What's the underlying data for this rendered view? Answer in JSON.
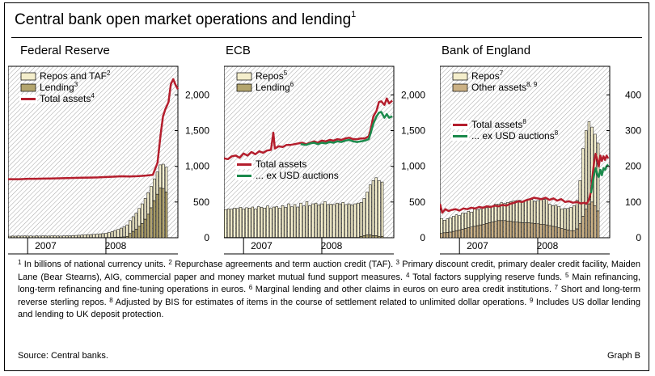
{
  "title": "Central bank open market operations and lending",
  "title_footnote": "1",
  "colors": {
    "repos": "#f4eecc",
    "lending": "#b3a56e",
    "other_assets": "#cbb185",
    "total_assets": "#b41e2d",
    "ex_usd": "#1b8a4c",
    "hatch": "#9a9a9a"
  },
  "chart_data": [
    {
      "type": "bar",
      "title": "Federal Reserve",
      "x_ticks": [
        "2007",
        "2008"
      ],
      "y_ticks": [
        "0",
        "500",
        "1,000",
        "1,500",
        "2,000"
      ],
      "ylim": [
        0,
        2400
      ],
      "legend": [
        {
          "label": "Repos and TAF",
          "note": "2",
          "kind": "bar",
          "color_key": "repos"
        },
        {
          "label": "Lending",
          "note": "3",
          "kind": "bar",
          "color_key": "lending"
        },
        {
          "label": "Total assets",
          "note": "4",
          "kind": "line",
          "color_key": "total_assets"
        }
      ],
      "x_start": 2006.75,
      "x_end": 2008.92,
      "x_step": 0.0385,
      "series": [
        {
          "name": "Repos and TAF",
          "kind": "stack_top",
          "values": [
            20,
            22,
            21,
            23,
            22,
            24,
            22,
            23,
            21,
            25,
            22,
            24,
            23,
            22,
            25,
            24,
            23,
            22,
            24,
            26,
            25,
            28,
            30,
            32,
            35,
            38,
            40,
            42,
            45,
            48,
            52,
            55,
            60,
            70,
            80,
            95,
            110,
            125,
            140,
            160,
            180,
            205,
            225,
            250,
            275,
            290,
            300,
            300,
            305,
            310,
            320,
            340,
            350
          ]
        },
        {
          "name": "Lending",
          "kind": "bar_bottom",
          "values": [
            2,
            2,
            2,
            2,
            2,
            2,
            2,
            2,
            2,
            2,
            2,
            2,
            2,
            2,
            2,
            2,
            2,
            2,
            2,
            2,
            2,
            2,
            3,
            3,
            3,
            3,
            3,
            3,
            3,
            3,
            3,
            3,
            4,
            4,
            5,
            6,
            8,
            10,
            12,
            20,
            60,
            90,
            120,
            160,
            200,
            260,
            330,
            420,
            520,
            610,
            700,
            690,
            640
          ]
        },
        {
          "name": "Total assets",
          "kind": "line",
          "x": [
            2006.75,
            2006.9,
            2007.0,
            2007.1,
            2007.2,
            2007.3,
            2007.4,
            2007.5,
            2007.6,
            2007.7,
            2007.8,
            2007.9,
            2008.0,
            2008.1,
            2008.2,
            2008.3,
            2008.4,
            2008.5,
            2008.6,
            2008.66,
            2008.7,
            2008.73,
            2008.76,
            2008.8,
            2008.83,
            2008.86,
            2008.89,
            2008.92
          ],
          "values": [
            820,
            820,
            825,
            825,
            828,
            830,
            832,
            835,
            838,
            840,
            842,
            845,
            850,
            855,
            860,
            858,
            862,
            870,
            880,
            1050,
            1450,
            1700,
            1800,
            1900,
            2150,
            2220,
            2140,
            2080
          ]
        }
      ]
    },
    {
      "type": "bar",
      "title": "ECB",
      "x_ticks": [
        "2007",
        "2008"
      ],
      "y_ticks": [
        "0",
        "500",
        "1,000",
        "1,500",
        "2,000"
      ],
      "ylim": [
        0,
        2400
      ],
      "legend_top": [
        {
          "label": "Repos",
          "note": "5",
          "kind": "bar",
          "color_key": "repos"
        },
        {
          "label": "Lending",
          "note": "6",
          "kind": "bar",
          "color_key": "lending"
        }
      ],
      "legend_mid": [
        {
          "label": "Total assets",
          "note": "",
          "kind": "line",
          "color_key": "total_assets"
        },
        {
          "label": "... ex USD auctions",
          "note": "",
          "kind": "line",
          "color_key": "ex_usd"
        }
      ],
      "x_start": 2006.75,
      "x_end": 2008.92,
      "x_step": 0.0385,
      "series": [
        {
          "name": "Repos",
          "kind": "stack_top",
          "values": [
            390,
            400,
            395,
            410,
            405,
            420,
            400,
            415,
            410,
            425,
            400,
            430,
            420,
            410,
            440,
            405,
            425,
            430,
            410,
            445,
            420,
            470,
            430,
            460,
            425,
            480,
            440,
            500,
            445,
            470,
            480,
            455,
            470,
            500,
            460,
            465,
            460,
            480,
            470,
            490,
            460,
            470,
            455,
            470,
            480,
            475,
            520,
            600,
            700,
            770,
            810,
            780,
            760
          ]
        },
        {
          "name": "Lending",
          "kind": "bar_bottom",
          "values": [
            5,
            5,
            5,
            5,
            5,
            5,
            5,
            5,
            5,
            5,
            5,
            5,
            5,
            5,
            5,
            5,
            5,
            5,
            5,
            5,
            5,
            5,
            5,
            5,
            5,
            5,
            5,
            5,
            5,
            5,
            5,
            5,
            5,
            5,
            5,
            5,
            5,
            5,
            5,
            5,
            5,
            5,
            5,
            5,
            5,
            20,
            30,
            40,
            40,
            30,
            30,
            20,
            20
          ]
        },
        {
          "name": "Total assets",
          "kind": "line",
          "x": [
            2006.75,
            2006.8,
            2006.85,
            2006.9,
            2006.95,
            2007.0,
            2007.05,
            2007.1,
            2007.15,
            2007.2,
            2007.25,
            2007.3,
            2007.35,
            2007.38,
            2007.4,
            2007.45,
            2007.5,
            2007.55,
            2007.6,
            2007.65,
            2007.7,
            2007.75,
            2007.8,
            2007.85,
            2007.9,
            2007.95,
            2008.0,
            2008.05,
            2008.1,
            2008.15,
            2008.2,
            2008.25,
            2008.3,
            2008.35,
            2008.4,
            2008.45,
            2008.5,
            2008.55,
            2008.6,
            2008.62,
            2008.66,
            2008.7,
            2008.73,
            2008.76,
            2008.8,
            2008.83,
            2008.86,
            2008.9
          ],
          "values": [
            1110,
            1100,
            1140,
            1150,
            1120,
            1180,
            1150,
            1200,
            1170,
            1210,
            1190,
            1220,
            1230,
            1470,
            1250,
            1280,
            1270,
            1300,
            1300,
            1310,
            1320,
            1330,
            1310,
            1330,
            1350,
            1330,
            1360,
            1350,
            1370,
            1360,
            1380,
            1370,
            1390,
            1400,
            1380,
            1380,
            1390,
            1390,
            1420,
            1500,
            1700,
            1780,
            1900,
            1910,
            1860,
            1950,
            1880,
            1920
          ]
        },
        {
          "name": "... ex USD auctions",
          "kind": "line",
          "x": [
            2007.73,
            2007.8,
            2007.85,
            2007.9,
            2007.95,
            2008.0,
            2008.05,
            2008.1,
            2008.15,
            2008.2,
            2008.25,
            2008.3,
            2008.35,
            2008.4,
            2008.45,
            2008.5,
            2008.55,
            2008.6,
            2008.62,
            2008.66,
            2008.7,
            2008.73,
            2008.76,
            2008.8,
            2008.83,
            2008.86,
            2008.9
          ],
          "values": [
            1310,
            1300,
            1320,
            1330,
            1310,
            1330,
            1320,
            1340,
            1330,
            1350,
            1340,
            1360,
            1370,
            1350,
            1340,
            1350,
            1360,
            1380,
            1450,
            1600,
            1700,
            1750,
            1760,
            1680,
            1730,
            1680,
            1700
          ]
        }
      ]
    },
    {
      "type": "bar",
      "title": "Bank of England",
      "x_ticks": [
        "2007",
        "2008"
      ],
      "y_ticks": [
        "0",
        "100",
        "200",
        "300",
        "400"
      ],
      "ylim": [
        0,
        480
      ],
      "legend_top": [
        {
          "label": "Repos",
          "note": "7",
          "kind": "bar",
          "color_key": "repos"
        },
        {
          "label": "Other assets",
          "note": "8, 9",
          "kind": "bar",
          "color_key": "other_assets"
        }
      ],
      "legend_mid": [
        {
          "label": "Total assets",
          "note": "8",
          "kind": "line",
          "color_key": "total_assets"
        },
        {
          "label": "... ex USD auctions",
          "note": "8",
          "kind": "line",
          "color_key": "ex_usd"
        }
      ],
      "x_start": 2006.75,
      "x_end": 2008.92,
      "x_step": 0.0385,
      "series": [
        {
          "name": "Repos",
          "kind": "stack_top",
          "values": [
            42,
            35,
            38,
            40,
            42,
            44,
            40,
            45,
            43,
            46,
            42,
            48,
            45,
            44,
            46,
            44,
            47,
            45,
            48,
            46,
            50,
            48,
            52,
            55,
            58,
            60,
            62,
            60,
            62,
            64,
            66,
            62,
            65,
            68,
            70,
            72,
            60,
            58,
            62,
            60,
            55,
            58,
            60,
            65,
            70,
            80,
            120,
            190,
            220,
            230,
            210,
            200,
            190
          ]
        },
        {
          "name": "Other assets",
          "kind": "bar_bottom",
          "values": [
            12,
            14,
            15,
            16,
            18,
            20,
            22,
            24,
            26,
            28,
            30,
            32,
            34,
            36,
            38,
            40,
            42,
            44,
            46,
            48,
            48,
            48,
            47,
            46,
            45,
            44,
            43,
            42,
            42,
            42,
            41,
            40,
            39,
            38,
            37,
            36,
            34,
            32,
            30,
            28,
            26,
            24,
            22,
            20,
            20,
            25,
            40,
            60,
            80,
            95,
            100,
            90,
            75
          ]
        },
        {
          "name": "Total assets",
          "kind": "line",
          "x": [
            2006.75,
            2006.78,
            2006.82,
            2006.86,
            2006.9,
            2006.95,
            2007.0,
            2007.05,
            2007.1,
            2007.15,
            2007.2,
            2007.25,
            2007.3,
            2007.35,
            2007.4,
            2007.45,
            2007.5,
            2007.55,
            2007.6,
            2007.65,
            2007.7,
            2007.75,
            2007.8,
            2007.85,
            2007.9,
            2007.95,
            2008.0,
            2008.05,
            2008.1,
            2008.15,
            2008.2,
            2008.25,
            2008.3,
            2008.35,
            2008.4,
            2008.45,
            2008.5,
            2008.55,
            2008.6,
            2008.62,
            2008.64,
            2008.66,
            2008.68,
            2008.7,
            2008.72,
            2008.74,
            2008.76,
            2008.78,
            2008.8,
            2008.82,
            2008.84,
            2008.86,
            2008.88,
            2008.9
          ],
          "values": [
            95,
            70,
            80,
            75,
            78,
            80,
            76,
            82,
            80,
            84,
            82,
            86,
            84,
            88,
            86,
            90,
            88,
            92,
            90,
            95,
            98,
            102,
            100,
            105,
            108,
            112,
            110,
            108,
            112,
            106,
            110,
            104,
            108,
            100,
            102,
            98,
            100,
            96,
            98,
            95,
            100,
            110,
            130,
            170,
            210,
            235,
            220,
            200,
            230,
            215,
            228,
            218,
            230,
            222
          ]
        },
        {
          "name": "... ex USD auctions",
          "kind": "line",
          "x": [
            2008.68,
            2008.7,
            2008.72,
            2008.74,
            2008.76,
            2008.78,
            2008.8,
            2008.82,
            2008.84,
            2008.86,
            2008.88,
            2008.9
          ],
          "values": [
            125,
            150,
            175,
            195,
            180,
            170,
            190,
            175,
            195,
            190,
            200,
            205
          ]
        }
      ]
    }
  ],
  "notes": [
    {
      "mark": "1",
      "text": "In billions of national currency units."
    },
    {
      "mark": "2",
      "text": "Repurchase agreements and term auction credit (TAF)."
    },
    {
      "mark": "3",
      "text": "Primary discount credit, primary dealer credit facility, Maiden Lane (Bear Stearns), AIG, commercial paper and money market mutual fund support measures."
    },
    {
      "mark": "4",
      "text": "Total factors supplying reserve funds."
    },
    {
      "mark": "5",
      "text": "Main refinancing, long-term refinancing and fine-tuning operations in euros."
    },
    {
      "mark": "6",
      "text": "Marginal lending and other claims in euros on euro area credit institutions."
    },
    {
      "mark": "7",
      "text": "Short and long-term reverse sterling repos."
    },
    {
      "mark": "8",
      "text": "Adjusted by BIS for estimates of items in the course of settlement related to unlimited dollar operations."
    },
    {
      "mark": "9",
      "text": "Includes US dollar lending and lending to UK deposit protection."
    }
  ],
  "source": "Source: Central banks.",
  "graph_label": "Graph B"
}
